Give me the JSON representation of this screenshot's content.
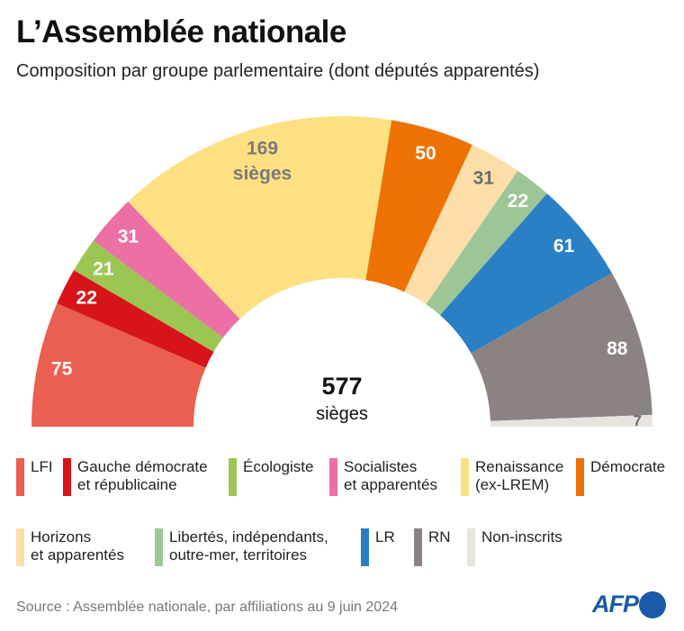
{
  "title": "L’Assemblée nationale",
  "subtitle": "Composition par groupe parlementaire (dont députés apparentés)",
  "source": "Source : Assemblée nationale, par affiliations au 9 juin 2024",
  "logo": "AFP",
  "chart_data": {
    "type": "pie",
    "variant": "half-donut",
    "total": 577,
    "center_value": "577",
    "center_label": "sièges",
    "largest_label_suffix": "sièges",
    "series": [
      {
        "name": "LFI",
        "value": 75,
        "color": "#ea5f4f",
        "label_color": "#ffffff"
      },
      {
        "name": "Gauche démocrate et républicaine",
        "value": 22,
        "color": "#d7141a",
        "label_color": "#ffffff"
      },
      {
        "name": "Écologiste",
        "value": 21,
        "color": "#9cc653",
        "label_color": "#ffffff"
      },
      {
        "name": "Socialistes et apparentés",
        "value": 31,
        "color": "#ec6fa5",
        "label_color": "#ffffff"
      },
      {
        "name": "Renaissance (ex-LREM)",
        "value": 169,
        "color": "#fde081",
        "label_color": "#7a7a7a"
      },
      {
        "name": "Démocrate",
        "value": 50,
        "color": "#ee7203",
        "label_color": "#ffffff"
      },
      {
        "name": "Horizons et apparentés",
        "value": 31,
        "color": "#fddea8",
        "label_color": "#6e6e6e"
      },
      {
        "name": "Libertés, indépendants, outre-mer, territoires",
        "value": 22,
        "color": "#9dc697",
        "label_color": "#ffffff"
      },
      {
        "name": "LR",
        "value": 61,
        "color": "#2a80c5",
        "label_color": "#ffffff"
      },
      {
        "name": "RN",
        "value": 88,
        "color": "#8b8381",
        "label_color": "#ffffff"
      },
      {
        "name": "Non-inscrits",
        "value": 7,
        "color": "#e8e3dd",
        "label_color": "#6e6e6e"
      }
    ],
    "legend": [
      [
        "LFI"
      ],
      [
        "Gauche démocrate",
        "et républicaine"
      ],
      [
        "Écologiste"
      ],
      [
        "Socialistes",
        "et apparentés"
      ],
      [
        "Renaissance",
        "(ex-LREM)"
      ],
      [
        "Démocrate"
      ],
      [
        "Horizons",
        "et apparentés"
      ],
      [
        "Libertés, indépendants,",
        "outre-mer, territoires"
      ],
      [
        "LR"
      ],
      [
        "RN"
      ],
      [
        "Non-inscrits"
      ]
    ]
  }
}
